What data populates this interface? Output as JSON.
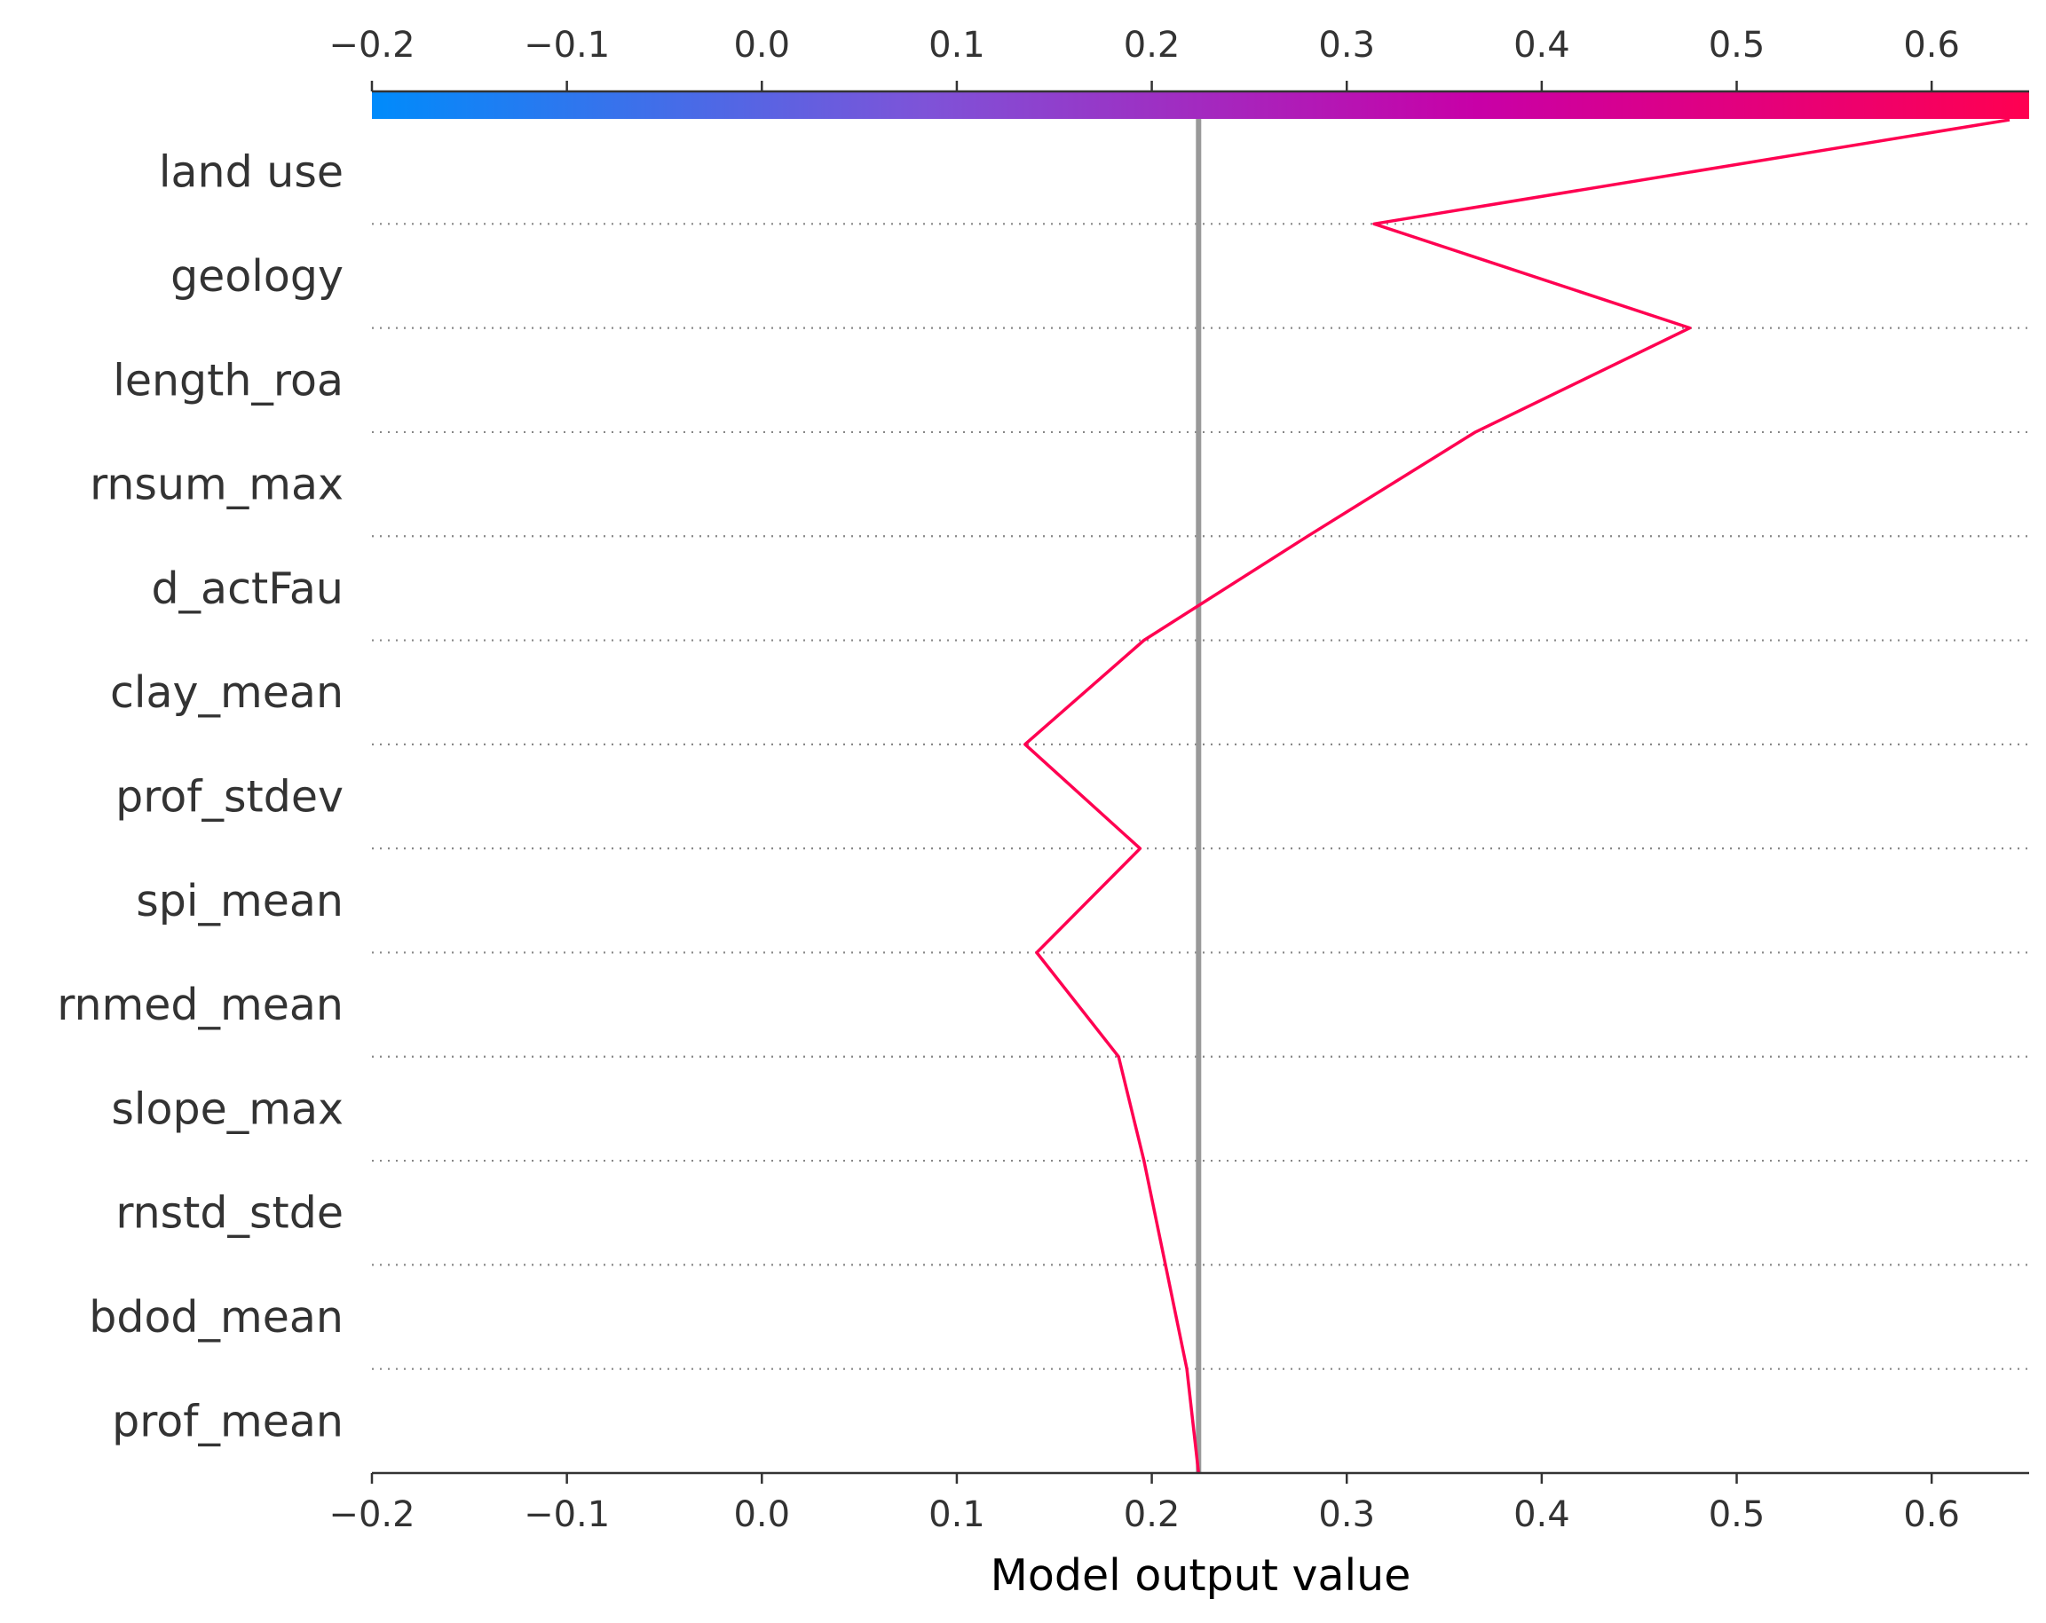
{
  "chart_data": {
    "type": "line",
    "xlabel": "Model output value",
    "xlim": [
      -0.2,
      0.65
    ],
    "x_ticks": [
      -0.2,
      -0.1,
      0.0,
      0.1,
      0.2,
      0.3,
      0.4,
      0.5,
      0.6
    ],
    "x_tick_labels": [
      "−0.2",
      "−0.1",
      "0.0",
      "0.1",
      "0.2",
      "0.3",
      "0.4",
      "0.5",
      "0.6"
    ],
    "base_value": 0.224,
    "features": [
      "land use",
      "geology",
      "length_roa",
      "rnsum_max",
      "d_actFau",
      "clay_mean",
      "prof_stdev",
      "spi_mean",
      "rnmed_mean",
      "slope_max",
      "rnstd_stde",
      "bdod_mean",
      "prof_mean"
    ],
    "cumulative_output": [
      0.64,
      0.314,
      0.476,
      0.366,
      0.28,
      0.196,
      0.135,
      0.194,
      0.141,
      0.183,
      0.196,
      0.207,
      0.218,
      0.224
    ],
    "colorbar": {
      "min": -0.2,
      "max": 0.65,
      "colors": [
        "#008bfb",
        "#7e53d8",
        "#c800a7",
        "#ff0051"
      ]
    },
    "line_color": "#ff0051",
    "base_line_color": "#999999",
    "grid_line_color": "#888888"
  }
}
